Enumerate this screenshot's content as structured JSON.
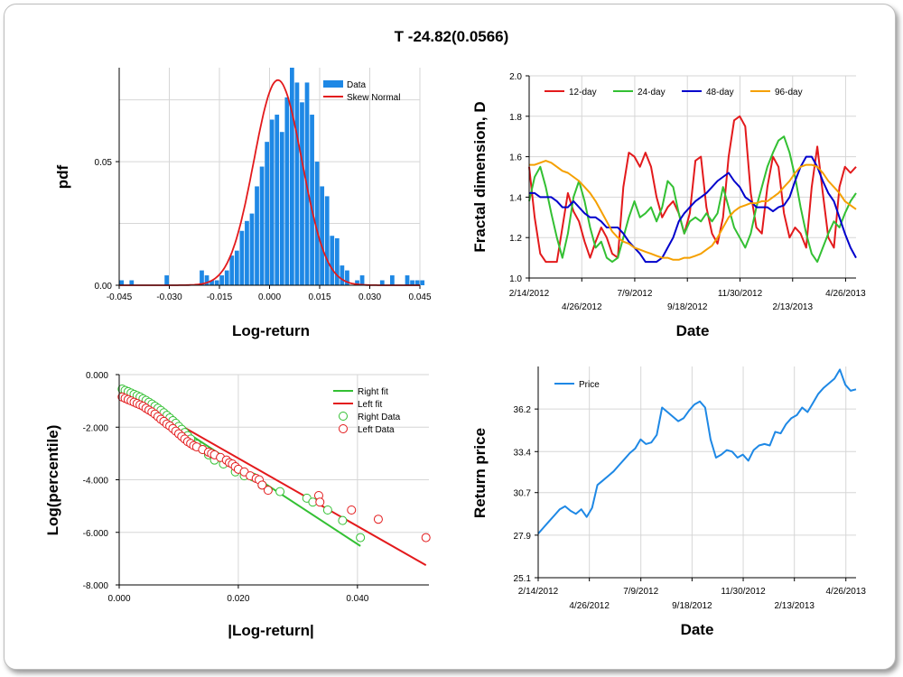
{
  "title": "T -24.82(0.0566)",
  "chart_data": [
    {
      "type": "bar",
      "id": "histogram",
      "xlabel": "Log-return",
      "ylabel": "pdf",
      "xlim": [
        -0.045,
        0.045
      ],
      "ylim": [
        0,
        0.088
      ],
      "x_ticks": [
        "-0.045",
        "-0.030",
        "-0.015",
        "0.000",
        "0.015",
        "0.030",
        "0.045"
      ],
      "y_ticks": [
        "0.00",
        "0.05"
      ],
      "legend": [
        "Data",
        "Skew Normal"
      ],
      "legend_position": "top-right",
      "grid": true,
      "bin_start": -0.045,
      "bin_width": 0.0015,
      "values": [
        0.002,
        0,
        0.002,
        0,
        0,
        0,
        0,
        0,
        0,
        0.004,
        0,
        0,
        0,
        0,
        0,
        0,
        0.006,
        0.004,
        0.002,
        0.002,
        0.004,
        0.006,
        0.012,
        0.014,
        0.022,
        0.026,
        0.029,
        0.04,
        0.048,
        0.058,
        0.067,
        0.069,
        0.062,
        0.076,
        0.088,
        0.082,
        0.074,
        0.082,
        0.069,
        0.05,
        0.04,
        0.036,
        0.02,
        0.019,
        0.008,
        0.006,
        0,
        0.002,
        0.004,
        0,
        0,
        0,
        0.002,
        0,
        0.004,
        0,
        0,
        0.004,
        0.002,
        0.002,
        0.002
      ],
      "fit": {
        "name": "Skew Normal",
        "mu": 0.0025,
        "sigma": 0.0072,
        "peak": 0.083
      }
    },
    {
      "type": "line",
      "id": "fractal",
      "xlabel": "Date",
      "ylabel": "Fractal dimension, D",
      "ylim": [
        1.0,
        2.0
      ],
      "x_ticks_top": [
        "2/14/2012",
        "7/9/2012",
        "11/30/2012",
        "4/26/2013"
      ],
      "x_ticks_bottom": [
        "4/26/2012",
        "9/18/2012",
        "2/13/2013"
      ],
      "y_ticks": [
        "1.0",
        "1.2",
        "1.4",
        "1.6",
        "1.8",
        "2.0"
      ],
      "legend_position": "top",
      "grid": true,
      "series": [
        {
          "name": "12-day",
          "color": "#e31a1c",
          "values": [
            1.55,
            1.3,
            1.12,
            1.08,
            1.08,
            1.08,
            1.25,
            1.42,
            1.33,
            1.28,
            1.18,
            1.1,
            1.18,
            1.25,
            1.2,
            1.12,
            1.1,
            1.45,
            1.62,
            1.6,
            1.55,
            1.62,
            1.55,
            1.4,
            1.3,
            1.35,
            1.38,
            1.32,
            1.22,
            1.32,
            1.58,
            1.6,
            1.35,
            1.22,
            1.17,
            1.3,
            1.6,
            1.78,
            1.8,
            1.75,
            1.42,
            1.25,
            1.22,
            1.45,
            1.6,
            1.55,
            1.32,
            1.2,
            1.25,
            1.22,
            1.15,
            1.45,
            1.65,
            1.42,
            1.2,
            1.15,
            1.45,
            1.55,
            1.52,
            1.55
          ]
        },
        {
          "name": "24-day",
          "color": "#33c033",
          "values": [
            1.38,
            1.5,
            1.55,
            1.45,
            1.32,
            1.2,
            1.1,
            1.22,
            1.4,
            1.48,
            1.38,
            1.25,
            1.15,
            1.18,
            1.1,
            1.08,
            1.1,
            1.2,
            1.3,
            1.38,
            1.3,
            1.32,
            1.35,
            1.28,
            1.35,
            1.48,
            1.45,
            1.32,
            1.22,
            1.28,
            1.3,
            1.28,
            1.32,
            1.28,
            1.32,
            1.45,
            1.35,
            1.25,
            1.2,
            1.15,
            1.22,
            1.35,
            1.45,
            1.55,
            1.62,
            1.68,
            1.7,
            1.62,
            1.5,
            1.35,
            1.22,
            1.12,
            1.08,
            1.15,
            1.22,
            1.28,
            1.25,
            1.32,
            1.38,
            1.42
          ]
        },
        {
          "name": "48-day",
          "color": "#0000cc",
          "values": [
            1.42,
            1.42,
            1.4,
            1.4,
            1.4,
            1.38,
            1.35,
            1.35,
            1.38,
            1.35,
            1.32,
            1.3,
            1.3,
            1.28,
            1.25,
            1.25,
            1.25,
            1.22,
            1.18,
            1.15,
            1.12,
            1.08,
            1.08,
            1.08,
            1.1,
            1.15,
            1.2,
            1.28,
            1.32,
            1.35,
            1.38,
            1.4,
            1.42,
            1.45,
            1.48,
            1.5,
            1.52,
            1.48,
            1.45,
            1.4,
            1.38,
            1.35,
            1.35,
            1.35,
            1.33,
            1.35,
            1.36,
            1.4,
            1.48,
            1.55,
            1.6,
            1.6,
            1.55,
            1.48,
            1.42,
            1.38,
            1.3,
            1.22,
            1.15,
            1.1
          ]
        },
        {
          "name": "96-day",
          "color": "#f5a000",
          "values": [
            1.56,
            1.56,
            1.57,
            1.58,
            1.57,
            1.55,
            1.53,
            1.52,
            1.5,
            1.48,
            1.45,
            1.42,
            1.38,
            1.33,
            1.28,
            1.23,
            1.2,
            1.18,
            1.17,
            1.15,
            1.14,
            1.13,
            1.12,
            1.11,
            1.1,
            1.1,
            1.09,
            1.09,
            1.1,
            1.1,
            1.11,
            1.12,
            1.14,
            1.16,
            1.2,
            1.25,
            1.3,
            1.33,
            1.35,
            1.36,
            1.37,
            1.37,
            1.38,
            1.38,
            1.4,
            1.42,
            1.45,
            1.48,
            1.52,
            1.55,
            1.56,
            1.56,
            1.55,
            1.52,
            1.48,
            1.45,
            1.42,
            1.38,
            1.36,
            1.34
          ]
        }
      ]
    },
    {
      "type": "scatter",
      "id": "tail",
      "xlabel": "|Log-return|",
      "ylabel": "Log(percentile)",
      "xlim": [
        0,
        0.052
      ],
      "ylim": [
        -8.0,
        0.0
      ],
      "x_ticks": [
        "0.000",
        "0.020",
        "0.040"
      ],
      "y_ticks": [
        "0.000",
        "-2.000",
        "-4.000",
        "-6.000",
        "-8.000"
      ],
      "legend_position": "top-right",
      "grid": true,
      "lines": [
        {
          "name": "Right fit",
          "color": "#33c033",
          "x": [
            0.0,
            0.0405
          ],
          "y": [
            -0.52,
            -6.52
          ]
        },
        {
          "name": "Left fit",
          "color": "#e31a1c",
          "x": [
            0.0,
            0.0515
          ],
          "y": [
            -0.6,
            -7.25
          ]
        }
      ],
      "series": [
        {
          "name": "Right Data",
          "color": "#33c033",
          "x": [
            0.0005,
            0.001,
            0.0015,
            0.002,
            0.0025,
            0.003,
            0.0035,
            0.004,
            0.0045,
            0.005,
            0.0055,
            0.006,
            0.0065,
            0.007,
            0.0075,
            0.008,
            0.0085,
            0.009,
            0.0095,
            0.01,
            0.0105,
            0.011,
            0.0115,
            0.012,
            0.013,
            0.014,
            0.015,
            0.016,
            0.0175,
            0.0195,
            0.021,
            0.0225,
            0.024,
            0.027,
            0.0315,
            0.0325,
            0.035,
            0.0375,
            0.0405
          ],
          "y": [
            -0.55,
            -0.6,
            -0.65,
            -0.7,
            -0.75,
            -0.8,
            -0.85,
            -0.92,
            -0.98,
            -1.05,
            -1.12,
            -1.2,
            -1.28,
            -1.36,
            -1.45,
            -1.55,
            -1.65,
            -1.75,
            -1.85,
            -1.97,
            -2.08,
            -2.2,
            -2.32,
            -2.45,
            -2.65,
            -2.85,
            -3.05,
            -3.25,
            -3.4,
            -3.7,
            -3.85,
            -3.9,
            -4.2,
            -4.45,
            -4.7,
            -4.85,
            -5.15,
            -5.55,
            -6.2
          ]
        },
        {
          "name": "Left Data",
          "color": "#e31a1c",
          "x": [
            0.0005,
            0.001,
            0.0015,
            0.002,
            0.0025,
            0.003,
            0.0035,
            0.004,
            0.0045,
            0.005,
            0.0055,
            0.006,
            0.0065,
            0.007,
            0.0075,
            0.008,
            0.0085,
            0.009,
            0.0095,
            0.01,
            0.0105,
            0.011,
            0.0115,
            0.012,
            0.0125,
            0.013,
            0.014,
            0.015,
            0.0155,
            0.016,
            0.017,
            0.018,
            0.0185,
            0.019,
            0.0195,
            0.02,
            0.021,
            0.022,
            0.023,
            0.0235,
            0.024,
            0.025,
            0.0335,
            0.0337,
            0.039,
            0.0435,
            0.0515
          ],
          "y": [
            -0.85,
            -0.9,
            -0.95,
            -1.0,
            -1.05,
            -1.1,
            -1.15,
            -1.2,
            -1.28,
            -1.35,
            -1.42,
            -1.5,
            -1.6,
            -1.7,
            -1.78,
            -1.88,
            -1.95,
            -2.05,
            -2.15,
            -2.25,
            -2.35,
            -2.45,
            -2.55,
            -2.62,
            -2.7,
            -2.75,
            -2.85,
            -2.95,
            -3.0,
            -3.05,
            -3.15,
            -3.25,
            -3.35,
            -3.4,
            -3.5,
            -3.6,
            -3.7,
            -3.85,
            -3.95,
            -4.0,
            -4.2,
            -4.4,
            -4.6,
            -4.85,
            -5.15,
            -5.5,
            -6.2
          ]
        }
      ]
    },
    {
      "type": "line",
      "id": "price",
      "xlabel": "Date",
      "ylabel": "Return price",
      "ylim": [
        25.1,
        39.0
      ],
      "x_ticks_top": [
        "2/14/2012",
        "7/9/2012",
        "11/30/2012",
        "4/26/2013"
      ],
      "x_ticks_bottom": [
        "4/26/2012",
        "9/18/2012",
        "2/13/2013"
      ],
      "y_ticks": [
        "25.1",
        "27.9",
        "30.7",
        "33.4",
        "36.2"
      ],
      "legend_position": "top-left",
      "grid": true,
      "series": [
        {
          "name": "Price",
          "color": "#1e88e5",
          "values": [
            28.0,
            28.4,
            28.8,
            29.2,
            29.6,
            29.8,
            29.5,
            29.3,
            29.6,
            29.1,
            29.7,
            31.2,
            31.5,
            31.8,
            32.1,
            32.5,
            32.9,
            33.3,
            33.6,
            34.2,
            33.9,
            34.0,
            34.5,
            36.3,
            36.0,
            35.7,
            35.4,
            35.6,
            36.1,
            36.5,
            36.7,
            36.3,
            34.2,
            33.0,
            33.2,
            33.5,
            33.4,
            33.0,
            33.2,
            32.8,
            33.5,
            33.8,
            33.9,
            33.8,
            34.7,
            34.6,
            35.2,
            35.6,
            35.8,
            36.3,
            36.0,
            36.6,
            37.2,
            37.6,
            37.9,
            38.2,
            38.8,
            37.8,
            37.4,
            37.5
          ]
        }
      ]
    }
  ]
}
